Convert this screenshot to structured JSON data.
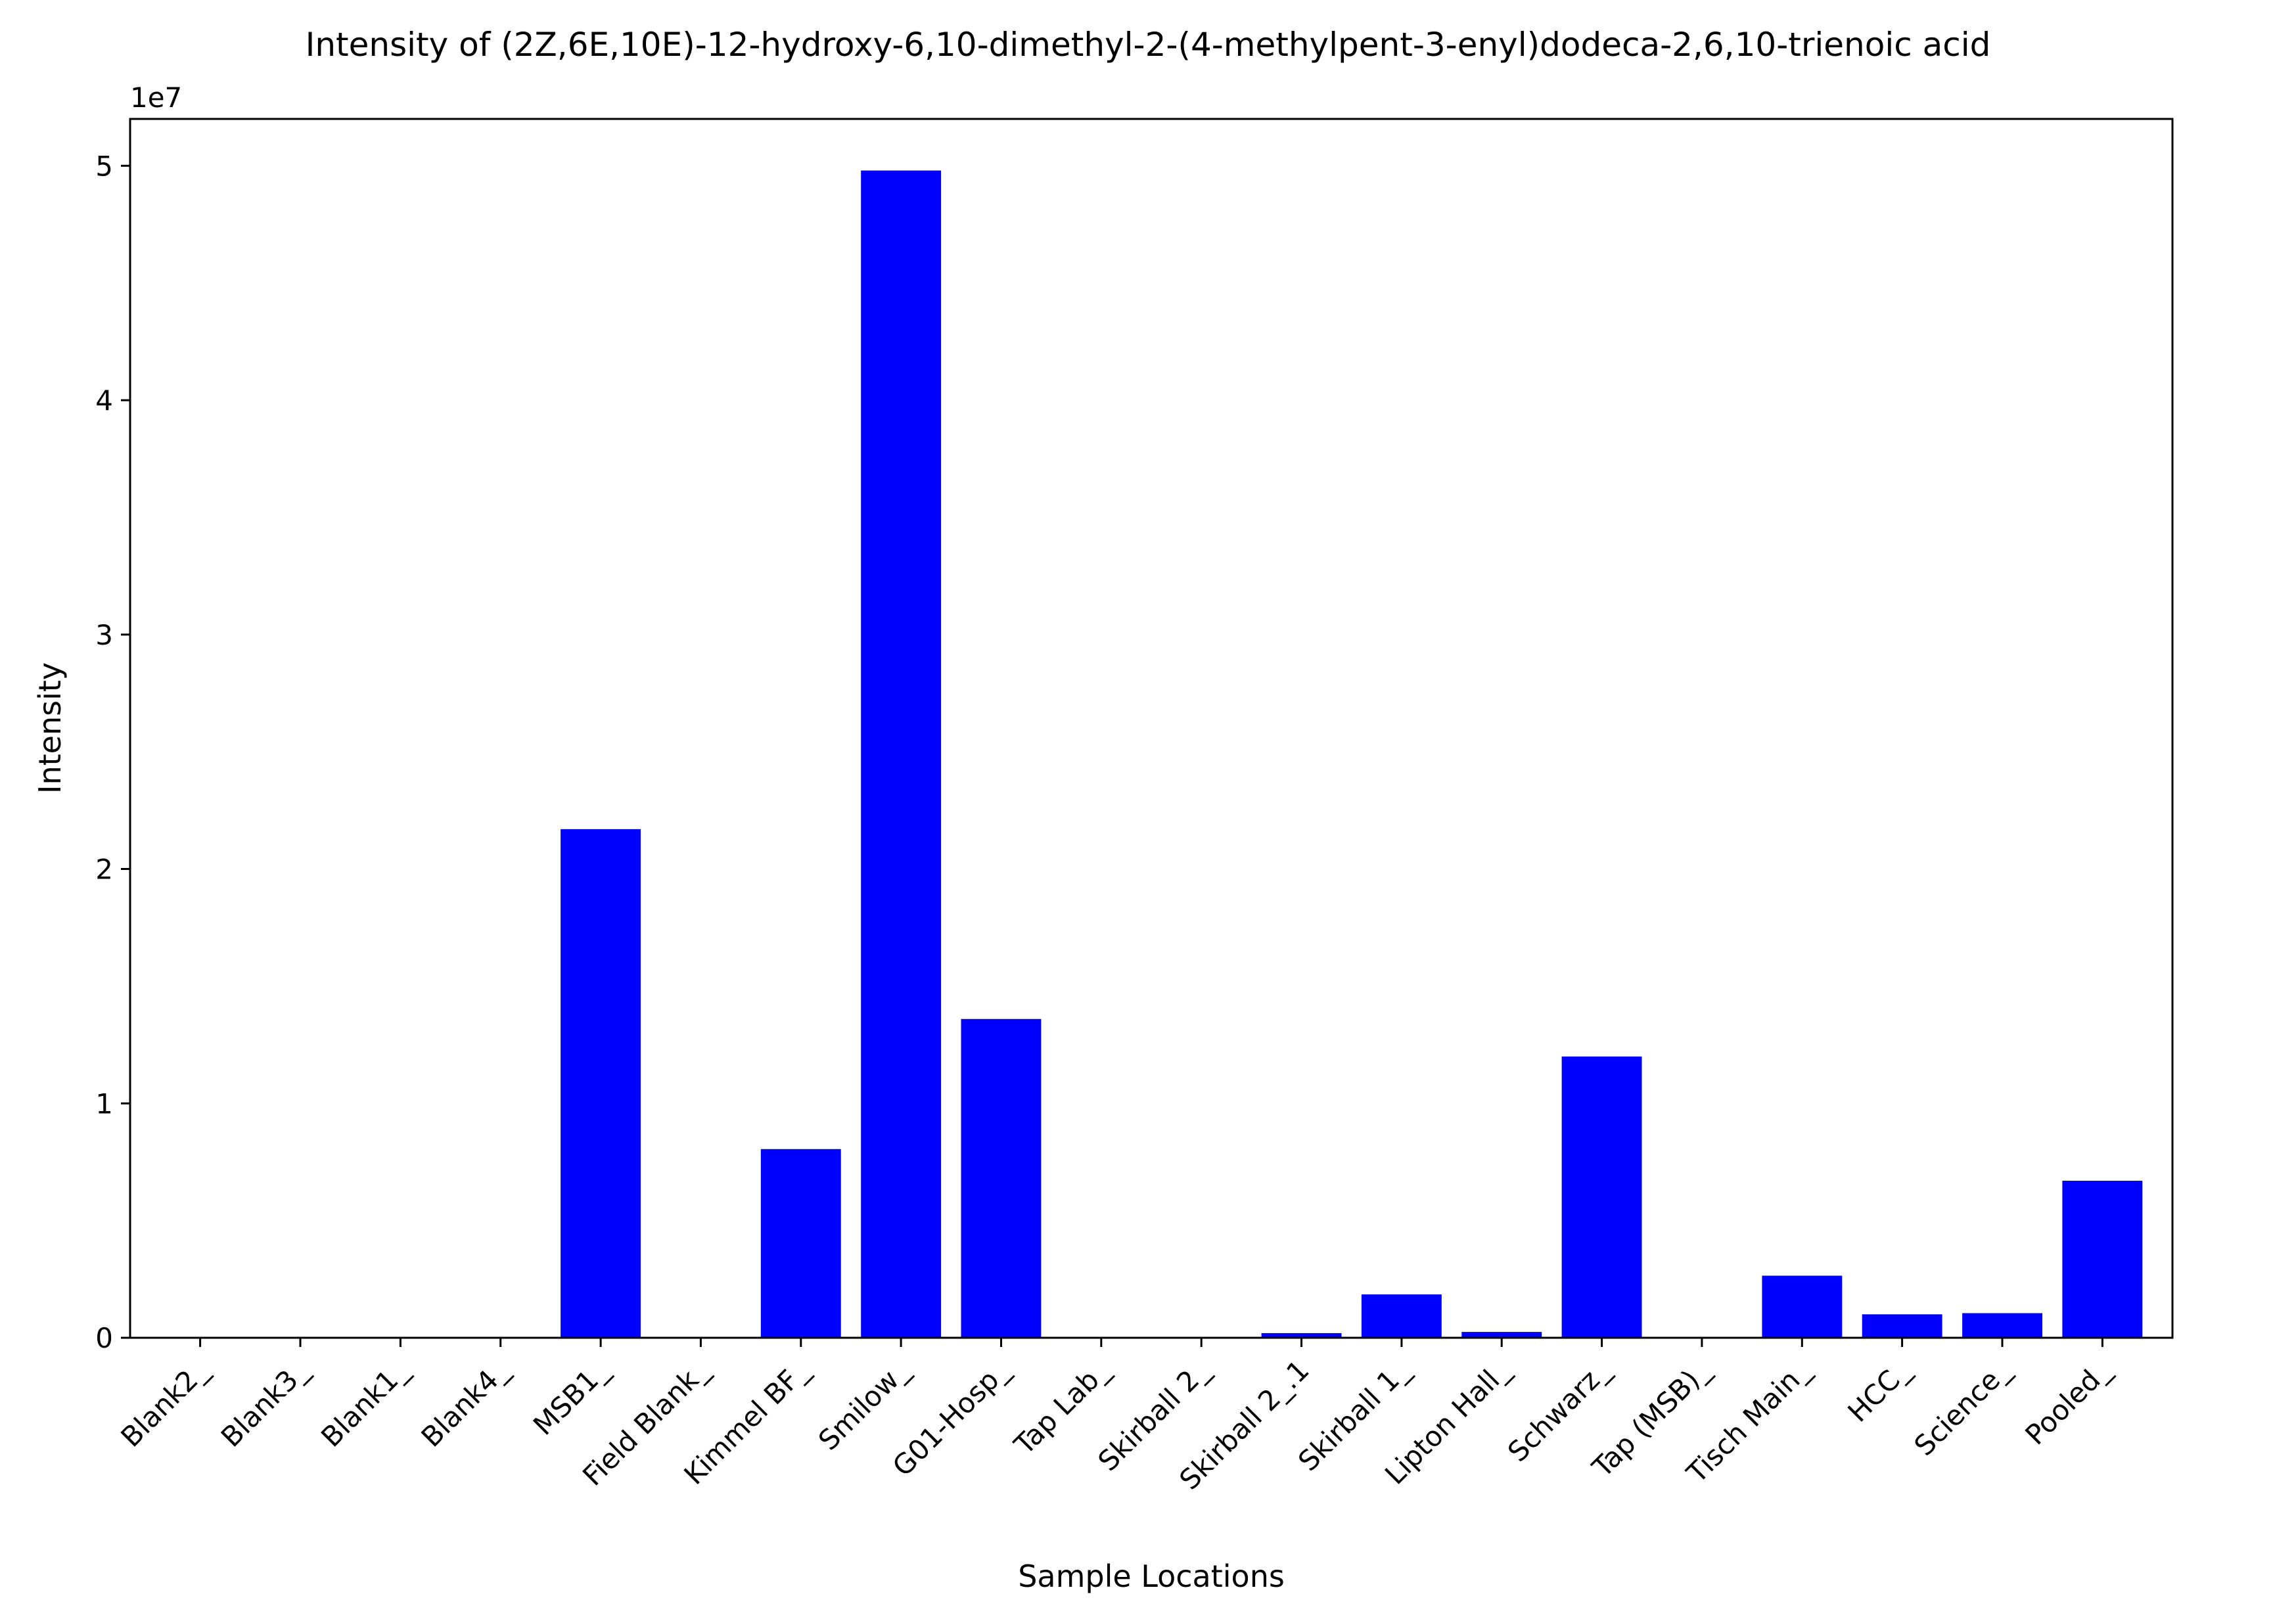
{
  "chart_data": {
    "type": "bar",
    "title": "Intensity of (2Z,6E,10E)-12-hydroxy-6,10-dimethyl-2-(4-methylpent-3-enyl)dodeca-2,6,10-trienoic acid",
    "xlabel": "Sample Locations",
    "ylabel": "Intensity",
    "y_offset_label": "1e7",
    "y_scale": 10000000,
    "ylim": [
      0,
      52000000
    ],
    "yticks": [
      0,
      10000000,
      20000000,
      30000000,
      40000000,
      50000000
    ],
    "ytick_labels": [
      "0",
      "1",
      "2",
      "3",
      "4",
      "5"
    ],
    "grid": false,
    "bar_color": "#0000ff",
    "categories": [
      "Blank2_",
      "Blank3_",
      "Blank1_",
      "Blank4_",
      "MSB1_",
      "Field Blank_",
      "Kimmel BF_",
      "Smilow_",
      "G01-Hosp_",
      "Tap Lab_",
      "Skirball 2_",
      "Skirball 2_.1",
      "Skirball 1_",
      "Lipton Hall_",
      "Schwarz_",
      "Tap (MSB)_",
      "Tisch Main_",
      "HCC_",
      "Science_",
      "Pooled_"
    ],
    "values": [
      0,
      0,
      0,
      0,
      21700000,
      0,
      8050000,
      49800000,
      13600000,
      0,
      0,
      200000,
      1850000,
      250000,
      12000000,
      0,
      2650000,
      1000000,
      1050000,
      6700000
    ]
  }
}
